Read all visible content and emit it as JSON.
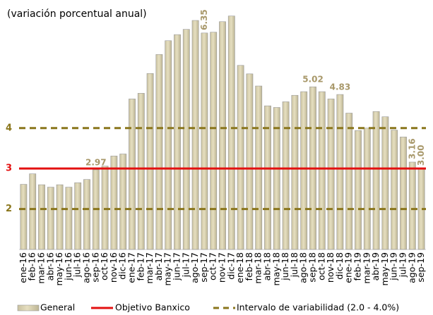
{
  "chart_data": {
    "type": "bar",
    "subtitle": "(variación porcentual anual)",
    "categories": [
      "ene-16",
      "feb-16",
      "mar-16",
      "abr-16",
      "may-16",
      "jun-16",
      "jul-16",
      "ago-16",
      "sep-16",
      "oct-16",
      "nov-16",
      "dic-16",
      "ene-17",
      "feb-17",
      "mar-17",
      "abr-17",
      "may-17",
      "jun-17",
      "jul-17",
      "ago-17",
      "sep-17",
      "oct-17",
      "nov-17",
      "dic-17",
      "ene-18",
      "feb-18",
      "mar-18",
      "abr-18",
      "may-18",
      "jun-18",
      "jul-18",
      "ago-18",
      "sep-18",
      "oct-18",
      "nov-18",
      "dic-18",
      "ene-19",
      "feb-19",
      "mar-19",
      "abr-19",
      "may-19",
      "jun-19",
      "jul-19",
      "ago-19",
      "sep-19"
    ],
    "series": [
      {
        "name": "General",
        "color": "#e6dfc0",
        "values": [
          2.61,
          2.87,
          2.6,
          2.54,
          2.6,
          2.54,
          2.65,
          2.73,
          2.97,
          3.06,
          3.31,
          3.36,
          4.72,
          4.86,
          5.35,
          5.82,
          6.16,
          6.31,
          6.44,
          6.66,
          6.35,
          6.37,
          6.63,
          6.77,
          5.55,
          5.34,
          5.04,
          4.55,
          4.51,
          4.65,
          4.81,
          4.9,
          5.02,
          4.9,
          4.72,
          4.83,
          4.37,
          3.94,
          4.0,
          4.41,
          4.28,
          3.95,
          3.78,
          3.16,
          3.0
        ],
        "value_labels": [
          null,
          null,
          null,
          null,
          null,
          null,
          null,
          null,
          "2.97",
          null,
          null,
          null,
          null,
          null,
          null,
          null,
          null,
          null,
          null,
          null,
          "6.35",
          null,
          null,
          null,
          null,
          null,
          null,
          null,
          null,
          null,
          null,
          null,
          "5.02",
          null,
          null,
          "4.83",
          null,
          null,
          null,
          null,
          null,
          null,
          null,
          "3.16",
          "3.00"
        ]
      }
    ],
    "reference_lines": [
      {
        "name": "Objetivo Banxico",
        "value": 3,
        "color": "#e31010",
        "dashed": false
      },
      {
        "name": "Intervalo de variabilidad (2.0 - 4.0%)",
        "values": [
          2,
          4
        ],
        "color": "#8a761c",
        "dashed": true
      }
    ],
    "ylim": [
      1,
      7
    ],
    "yticks": [
      2,
      3,
      4
    ],
    "label_color": "#a8986a"
  }
}
